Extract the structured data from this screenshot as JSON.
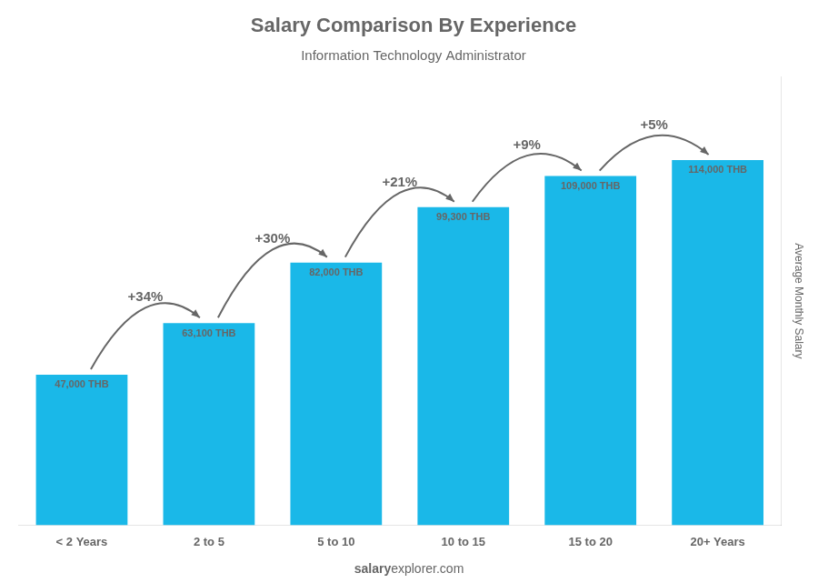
{
  "chart_data": {
    "type": "bar",
    "title": "Salary Comparison By Experience",
    "subtitle": "Information Technology Administrator",
    "ylabel": "Average Monthly Salary",
    "categories": [
      "< 2 Years",
      "2 to 5",
      "5 to 10",
      "10 to 15",
      "15 to 20",
      "20+ Years"
    ],
    "values": [
      47000,
      63100,
      82000,
      99300,
      109000,
      114000
    ],
    "value_labels": [
      "47,000 THB",
      "63,100 THB",
      "82,000 THB",
      "99,300 THB",
      "109,000 THB",
      "114,000 THB"
    ],
    "data_labels": true,
    "color": "#1ab8e8",
    "ylim": [
      0,
      140000
    ],
    "tick_labels": "x",
    "grid": false,
    "annotations": [
      {
        "text": "+34%",
        "from": "< 2 Years",
        "to": "2 to 5"
      },
      {
        "text": "+30%",
        "from": "2 to 5",
        "to": "5 to 10"
      },
      {
        "text": "+21%",
        "from": "5 to 10",
        "to": "10 to 15"
      },
      {
        "text": "+9%",
        "from": "10 to 15",
        "to": "15 to 20"
      },
      {
        "text": "+5%",
        "from": "15 to 20",
        "to": "20+ Years"
      }
    ],
    "footer": [
      "salary",
      "explorer.com"
    ]
  }
}
